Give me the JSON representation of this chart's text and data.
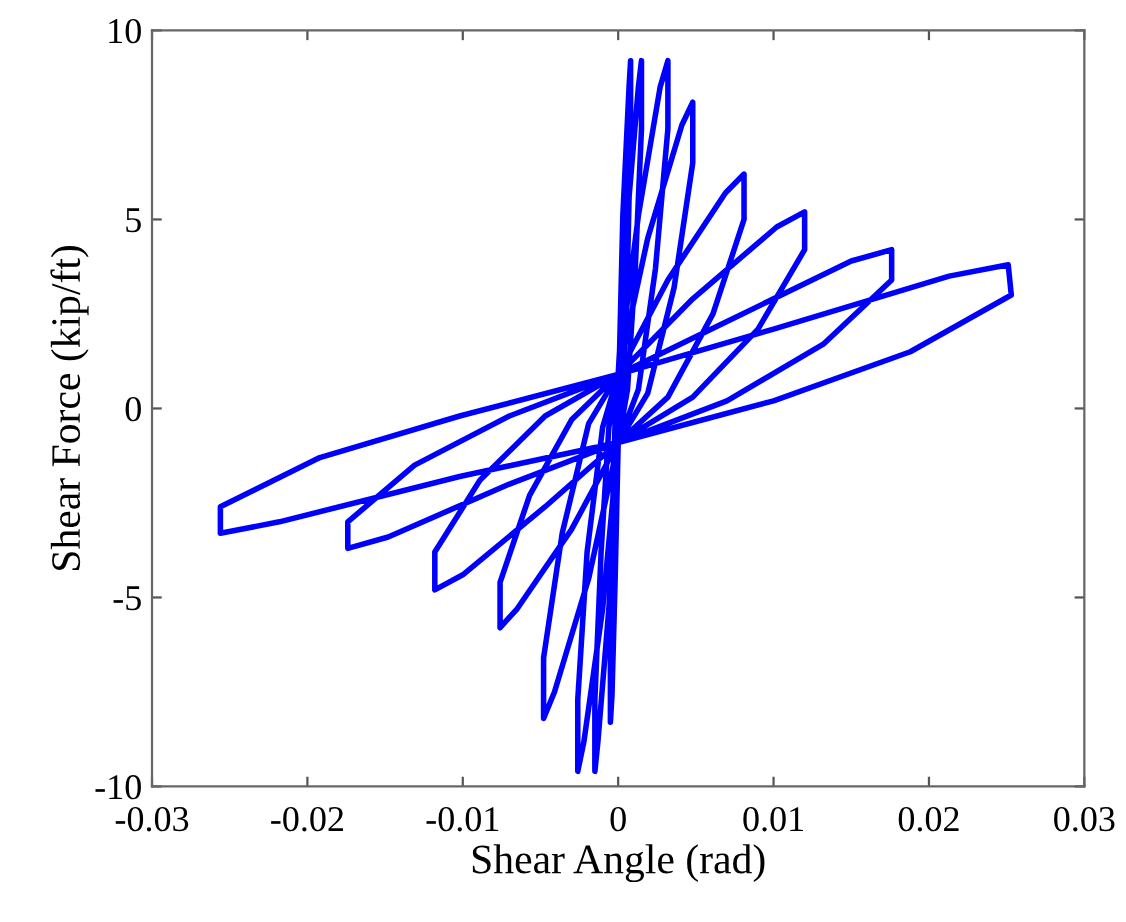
{
  "chart_data": {
    "type": "line",
    "xlabel": "Shear Angle (rad)",
    "ylabel": "Shear Force (kip/ft)",
    "xlim": [
      -0.03,
      0.03
    ],
    "ylim": [
      -10,
      10
    ],
    "xticks": [
      -0.03,
      -0.02,
      -0.01,
      0,
      0.01,
      0.02,
      0.03
    ],
    "yticks": [
      -10,
      -5,
      0,
      5,
      10
    ],
    "grid": false,
    "marker": "none",
    "line_style": "solid",
    "series": [
      {
        "color": "#0000ff",
        "x": [
          0,
          0.0003,
          0.0007,
          0.0008,
          0.0008,
          0.0006,
          0.0003,
          0,
          -0.0002,
          -0.0004,
          -0.0005,
          -0.0005,
          -0.0004,
          -0.0002,
          0,
          0.0006,
          0.0013,
          0.0015,
          0.0015,
          0.0011,
          0.0006,
          0,
          -0.0006,
          -0.0013,
          -0.0015,
          -0.0015,
          -0.0011,
          -0.0006,
          0,
          0.0013,
          0.0027,
          0.0032,
          0.0032,
          0.0024,
          0.0013,
          0,
          -0.001,
          -0.0022,
          -0.0026,
          -0.0026,
          -0.002,
          -0.001,
          0,
          0.0019,
          0.0041,
          0.0048,
          0.0048,
          0.0036,
          0.0019,
          0,
          -0.0019,
          -0.0041,
          -0.0048,
          -0.0048,
          -0.0036,
          -0.0019,
          0,
          0.0032,
          0.0069,
          0.0081,
          0.0081,
          0.0061,
          0.0032,
          0,
          -0.003,
          -0.0065,
          -0.0076,
          -0.0076,
          -0.0057,
          -0.003,
          0,
          0.0048,
          0.0102,
          0.012,
          0.012,
          0.009,
          0.0048,
          0,
          -0.0047,
          -0.01,
          -0.0118,
          -0.0118,
          -0.0089,
          -0.0047,
          0,
          0.007,
          0.015,
          0.0176,
          0.0176,
          0.0132,
          0.007,
          0,
          -0.007,
          -0.0148,
          -0.0174,
          -0.0174,
          -0.0131,
          -0.007,
          0,
          0.01,
          0.0213,
          0.0251,
          0.0253,
          0.0188,
          0.01,
          0,
          -0.0102,
          -0.0218,
          -0.0256,
          -0.0256,
          -0.0192,
          -0.0102,
          0
        ],
        "values": [
          0,
          5.1,
          8.5,
          9.2,
          7.4,
          3.7,
          0.5,
          -0.9,
          -4.6,
          -7.6,
          -8.3,
          -6.6,
          -3.3,
          -0.4,
          0.9,
          5.1,
          8.5,
          9.2,
          7.4,
          3.7,
          0.5,
          -0.9,
          -5.3,
          -8.8,
          -9.6,
          -7.7,
          -3.8,
          -0.5,
          0.9,
          5.1,
          8.5,
          9.2,
          7.4,
          3.7,
          0.5,
          -0.9,
          -5.3,
          -8.8,
          -9.6,
          -7.7,
          -3.8,
          -0.5,
          0.9,
          4.5,
          7.5,
          8.1,
          6.5,
          3.2,
          0.4,
          -0.9,
          -4.5,
          -7.5,
          -8.2,
          -6.6,
          -3.3,
          -0.4,
          0.9,
          3.4,
          5.7,
          6.2,
          5.0,
          2.5,
          0.3,
          -0.9,
          -3.2,
          -5.3,
          -5.8,
          -4.6,
          -2.3,
          -0.3,
          0.9,
          2.9,
          4.8,
          5.2,
          4.2,
          2.1,
          0.3,
          -0.9,
          -2.6,
          -4.4,
          -4.8,
          -3.8,
          -1.9,
          -0.2,
          0.9,
          2.3,
          3.9,
          4.2,
          3.4,
          1.7,
          0.2,
          -0.9,
          -2.0,
          -3.4,
          -3.7,
          -3.0,
          -1.5,
          -0.2,
          0.9,
          2.1,
          3.5,
          3.8,
          3.0,
          1.5,
          0.2,
          -0.9,
          -1.8,
          -3.0,
          -3.3,
          -2.6,
          -1.3,
          -0.2,
          0.9
        ]
      }
    ]
  }
}
